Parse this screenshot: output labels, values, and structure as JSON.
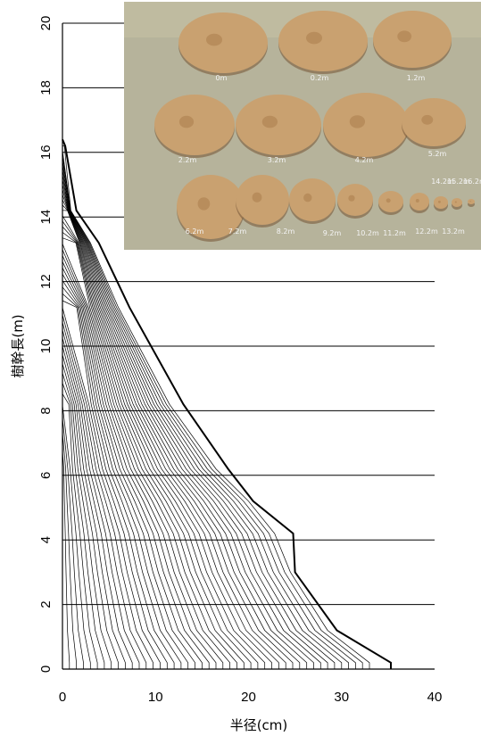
{
  "chart_data": {
    "type": "line",
    "title": "",
    "xlabel": "半径(cm)",
    "ylabel": "樹幹長(m)",
    "xlim": [
      0,
      40
    ],
    "ylim": [
      0,
      20
    ],
    "x_ticks": [
      "0",
      "10",
      "20",
      "30",
      "40"
    ],
    "y_ticks": [
      "0",
      "2",
      "4",
      "6",
      "8",
      "10",
      "12",
      "14",
      "16",
      "18",
      "20"
    ],
    "grid": "horizontal",
    "legend": "none",
    "description": "Stem analysis: one radial profile per growth ring; the bold outer line is the bark (outermost) profile.",
    "outer_profile": {
      "x": [
        35.3,
        29.5,
        25.0,
        24.8,
        20.5,
        17.8,
        13.0,
        7.2,
        3.9,
        1.5,
        0.3
      ],
      "y": [
        0.2,
        1.2,
        3.0,
        4.2,
        5.2,
        6.2,
        8.2,
        11.2,
        13.2,
        14.2,
        16.2
      ]
    },
    "inner_profile": {
      "x": [
        33.0,
        28.5,
        24.5,
        22.8,
        20.0,
        16.5,
        11.5,
        6.0,
        3.0,
        0.9,
        0.2
      ],
      "y": [
        0.2,
        1.2,
        3.0,
        4.2,
        5.2,
        6.2,
        8.2,
        11.2,
        13.2,
        14.2,
        16.2
      ]
    },
    "ring_count": 44,
    "line_color": "#000000"
  },
  "photo": {
    "description": "Photograph of stem disc cross-sections",
    "background_color": "#b9b49b",
    "disc_color": "#c9a170",
    "disc_labels": [
      "0m",
      "0.2m",
      "1.2m",
      "2.2m",
      "3.2m",
      "4.2m",
      "5.2m",
      "6.2m",
      "7.2m",
      "8.2m",
      "9.2m",
      "10.2m",
      "11.2m",
      "12.2m",
      "13.2m",
      "14.2m",
      "15.2m",
      "16.2m"
    ]
  }
}
